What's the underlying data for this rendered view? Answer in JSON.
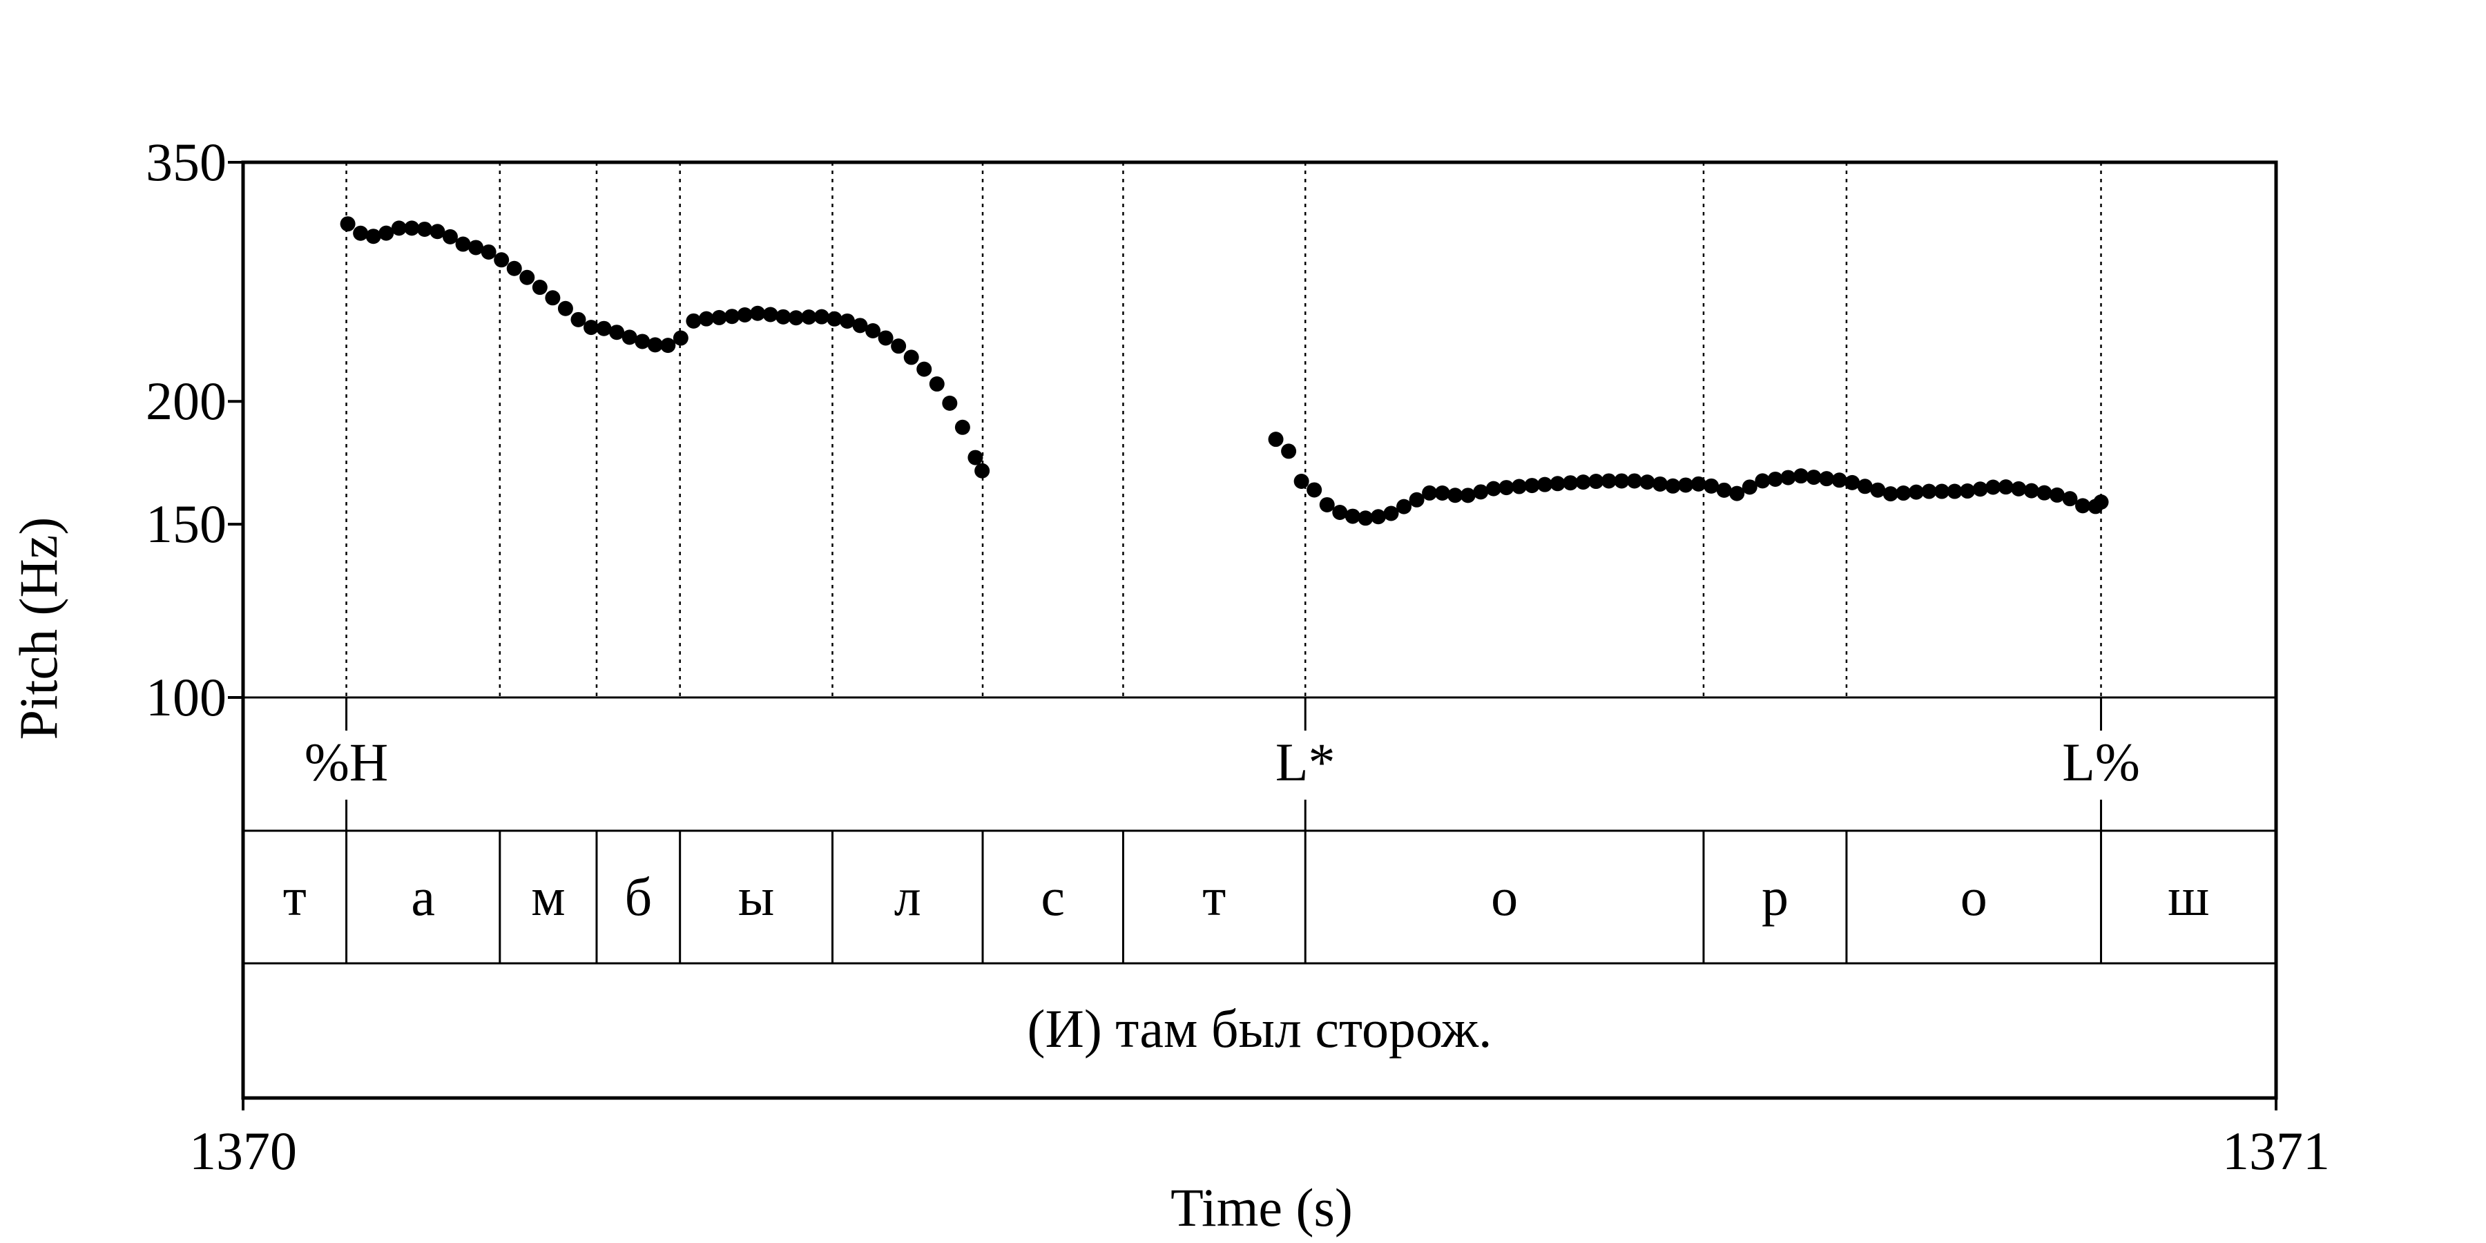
{
  "chart_data": {
    "type": "scatter",
    "title": "",
    "xlabel": "Time (s)",
    "ylabel": "Pitch (Hz)",
    "xlim": [
      1370,
      1371
    ],
    "ylim": [
      100,
      350
    ],
    "y_scale": "log",
    "x_ticks": [
      "1370",
      "1371"
    ],
    "y_ticks": [
      "100",
      "150",
      "200",
      "350"
    ],
    "grid": false,
    "boundaries": [
      1370.0508,
      1370.1263,
      1370.1739,
      1370.2149,
      1370.2899,
      1370.3638,
      1370.4329,
      1370.5225,
      1370.7184,
      1370.7887,
      1370.9139
    ],
    "tones": [
      {
        "label": "%H",
        "time": 1370.0508
      },
      {
        "label": "L*",
        "time": 1370.5225
      },
      {
        "label": "L%",
        "time": 1370.9139
      }
    ],
    "segments": [
      {
        "label": "т",
        "start": 1370.0,
        "end": 1370.0508
      },
      {
        "label": "а",
        "start": 1370.0508,
        "end": 1370.1263
      },
      {
        "label": "м",
        "start": 1370.1263,
        "end": 1370.1739
      },
      {
        "label": "б",
        "start": 1370.1739,
        "end": 1370.2149
      },
      {
        "label": "ы",
        "start": 1370.2149,
        "end": 1370.2899
      },
      {
        "label": "л",
        "start": 1370.2899,
        "end": 1370.3638
      },
      {
        "label": "с",
        "start": 1370.3638,
        "end": 1370.4329
      },
      {
        "label": "т",
        "start": 1370.4329,
        "end": 1370.5225
      },
      {
        "label": "о",
        "start": 1370.5225,
        "end": 1370.7184
      },
      {
        "label": "р",
        "start": 1370.7184,
        "end": 1370.7887
      },
      {
        "label": "о",
        "start": 1370.7887,
        "end": 1370.9139
      },
      {
        "label": "ш",
        "start": 1370.9139,
        "end": 1371.0
      }
    ],
    "sentence": "(И) там был сторож.",
    "series": [
      {
        "name": "",
        "anchors": [
          [
            1370.0515,
            303
          ],
          [
            1370.0566,
            297
          ],
          [
            1370.0631,
            294
          ],
          [
            1370.0696,
            296
          ],
          [
            1370.0759,
            300
          ],
          [
            1370.0862,
            300
          ],
          [
            1370.0982,
            297
          ],
          [
            1370.1081,
            289
          ],
          [
            1370.1192,
            285
          ],
          [
            1370.129,
            277
          ],
          [
            1370.1423,
            265
          ],
          [
            1370.1572,
            250
          ],
          [
            1370.1691,
            238
          ],
          [
            1370.1794,
            237
          ],
          [
            1370.1933,
            231
          ],
          [
            1370.2037,
            228
          ],
          [
            1370.2126,
            228
          ],
          [
            1370.222,
            242
          ],
          [
            1370.2406,
            244
          ],
          [
            1370.2549,
            246
          ],
          [
            1370.2693,
            243
          ],
          [
            1370.2836,
            244
          ],
          [
            1370.299,
            241
          ],
          [
            1370.3118,
            235
          ],
          [
            1370.3233,
            227
          ],
          [
            1370.3347,
            216
          ],
          [
            1370.3442,
            205
          ],
          [
            1370.3531,
            190
          ],
          [
            1370.3586,
            178
          ],
          [
            1370.3635,
            170
          ]
        ],
        "anchors2": [
          [
            1370.508,
            183
          ],
          [
            1370.5138,
            179
          ],
          [
            1370.5203,
            166
          ],
          [
            1370.5264,
            163
          ],
          [
            1370.5332,
            157
          ],
          [
            1370.54,
            154
          ],
          [
            1370.55,
            152
          ],
          [
            1370.5625,
            153
          ],
          [
            1370.5702,
            156
          ],
          [
            1370.5851,
            162
          ],
          [
            1370.6001,
            160
          ],
          [
            1370.6146,
            163
          ],
          [
            1370.63,
            164
          ],
          [
            1370.647,
            165
          ],
          [
            1370.669,
            166
          ],
          [
            1370.687,
            166
          ],
          [
            1370.7037,
            164
          ],
          [
            1370.7184,
            165
          ],
          [
            1370.7343,
            161
          ],
          [
            1370.7471,
            166
          ],
          [
            1370.7666,
            168
          ],
          [
            1370.7887,
            166
          ],
          [
            1370.8107,
            161
          ],
          [
            1370.8277,
            162
          ],
          [
            1370.847,
            162
          ],
          [
            1370.8643,
            164
          ],
          [
            1370.8819,
            162
          ],
          [
            1370.8968,
            160
          ],
          [
            1370.9089,
            155
          ],
          [
            1370.9139,
            158
          ]
        ]
      }
    ]
  }
}
